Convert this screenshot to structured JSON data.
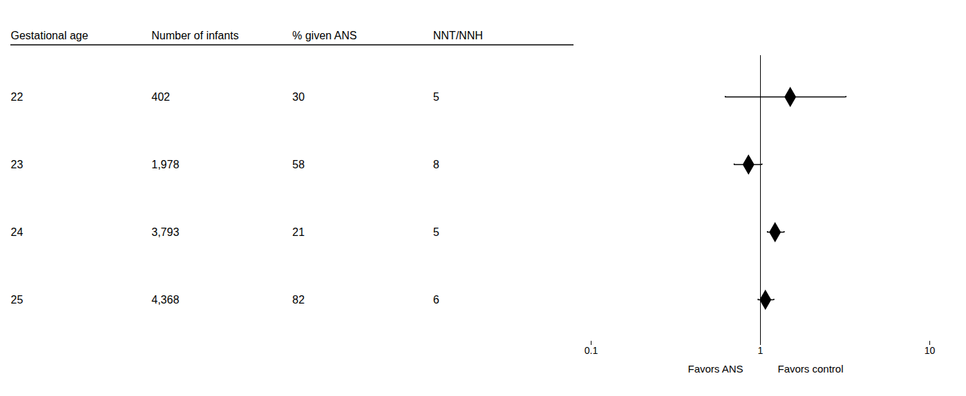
{
  "chart_data": {
    "type": "forest",
    "categories": [
      "22",
      "23",
      "24",
      "25"
    ],
    "values": [
      1.5,
      0.85,
      1.22,
      1.07
    ],
    "ci_low": [
      0.62,
      0.7,
      1.1,
      0.97
    ],
    "ci_high": [
      3.2,
      1.02,
      1.38,
      1.2
    ],
    "table_headers": [
      "Gestational age",
      "Number of infants",
      "% given ANS",
      "NNT/NNH"
    ],
    "n_infants": [
      "402",
      "1,978",
      "3,793",
      "4,368"
    ],
    "pct_ans": [
      "30",
      "58",
      "21",
      "82"
    ],
    "nnt_nnh": [
      "5",
      "8",
      "5",
      "6"
    ],
    "xlim": [
      0.1,
      10
    ],
    "xticks": [
      0.1,
      1,
      10
    ],
    "log": "x",
    "reference_x": 1,
    "xlabel_left": "Favors ANS",
    "xlabel_right": "Favors control",
    "marker": "diamond",
    "color": "#000000",
    "grid": false,
    "tick_labels": "x"
  }
}
